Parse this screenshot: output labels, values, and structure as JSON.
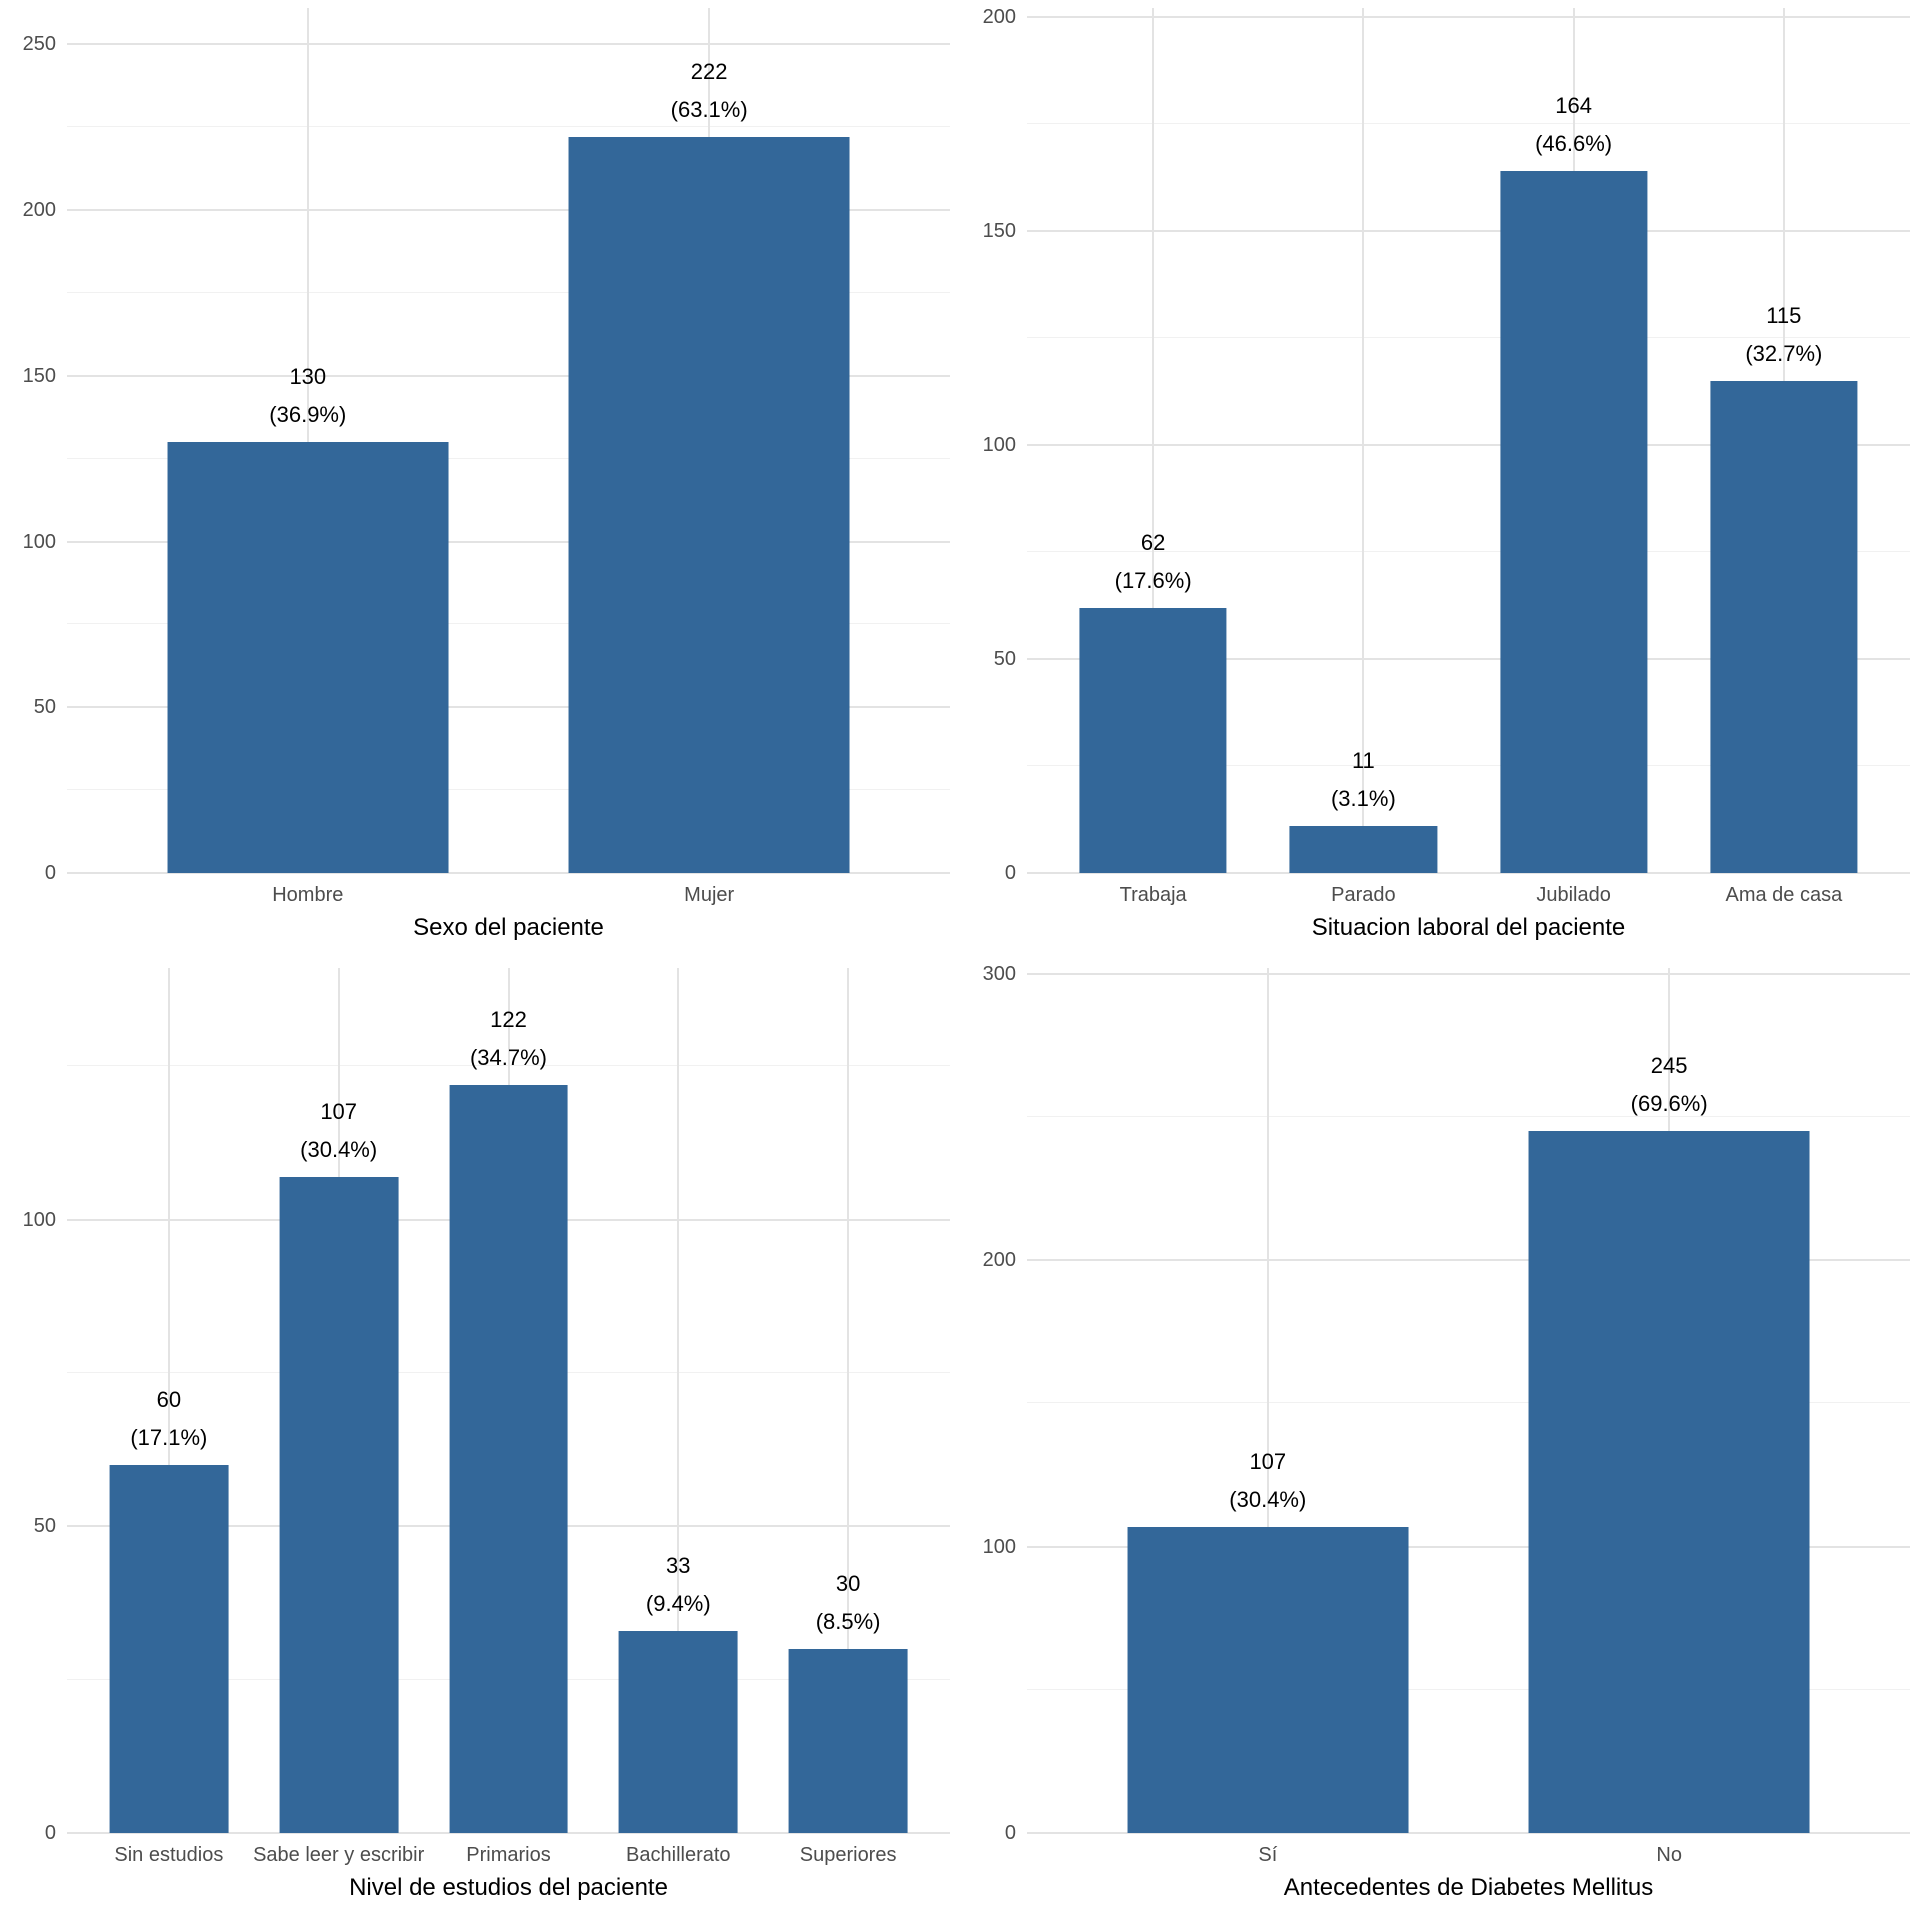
{
  "style": {
    "background": "#ffffff",
    "bar_color": "#336799",
    "grid_major_color": "#e3e3e3",
    "grid_minor_color": "#f1f1f1",
    "tick_label_color": "#4d4d4d",
    "text_color": "#000000"
  },
  "chart_data": {
    "type": "bar",
    "layout": "2x2-grid",
    "grid": true,
    "legend": false,
    "charts": [
      {
        "id": "sexo-del-paciente",
        "x_axis_title": "Sexo del paciente",
        "categories": [
          "Hombre",
          "Mujer"
        ],
        "bars": [
          {
            "category": "Hombre",
            "value": 130,
            "count_label": "130",
            "pct_label": "(36.9%)"
          },
          {
            "category": "Mujer",
            "value": 222,
            "count_label": "222",
            "pct_label": "(63.1%)"
          }
        ],
        "y_major_ticks": [
          0,
          50,
          100,
          150,
          200,
          250
        ],
        "y_minor_ticks": [
          25,
          75,
          125,
          175,
          225
        ],
        "ylim": [
          0,
          261
        ]
      },
      {
        "id": "situacion-laboral",
        "x_axis_title": "Situacion laboral del paciente",
        "categories": [
          "Trabaja",
          "Parado",
          "Jubilado",
          "Ama de casa"
        ],
        "bars": [
          {
            "category": "Trabaja",
            "value": 62,
            "count_label": "62",
            "pct_label": "(17.6%)"
          },
          {
            "category": "Parado",
            "value": 11,
            "count_label": "11",
            "pct_label": "(3.1%)"
          },
          {
            "category": "Jubilado",
            "value": 164,
            "count_label": "164",
            "pct_label": "(46.6%)"
          },
          {
            "category": "Ama de casa",
            "value": 115,
            "count_label": "115",
            "pct_label": "(32.7%)"
          }
        ],
        "y_major_ticks": [
          0,
          50,
          100,
          150,
          200
        ],
        "y_minor_ticks": [
          25,
          75,
          125,
          175
        ],
        "ylim": [
          0,
          202
        ]
      },
      {
        "id": "nivel-de-estudios",
        "x_axis_title": "Nivel de estudios del paciente",
        "categories": [
          "Sin estudios",
          "Sabe leer y escribir",
          "Primarios",
          "Bachillerato",
          "Superiores"
        ],
        "bars": [
          {
            "category": "Sin estudios",
            "value": 60,
            "count_label": "60",
            "pct_label": "(17.1%)"
          },
          {
            "category": "Sabe leer y escribir",
            "value": 107,
            "count_label": "107",
            "pct_label": "(30.4%)"
          },
          {
            "category": "Primarios",
            "value": 122,
            "count_label": "122",
            "pct_label": "(34.7%)"
          },
          {
            "category": "Bachillerato",
            "value": 33,
            "count_label": "33",
            "pct_label": "(9.4%)"
          },
          {
            "category": "Superiores",
            "value": 30,
            "count_label": "30",
            "pct_label": "(8.5%)"
          }
        ],
        "y_major_ticks": [
          0,
          50,
          100
        ],
        "y_minor_ticks": [
          25,
          75,
          125
        ],
        "ylim": [
          0,
          141
        ]
      },
      {
        "id": "antecedentes-diabetes",
        "x_axis_title": "Antecedentes de Diabetes Mellitus",
        "categories": [
          "Sí",
          "No"
        ],
        "bars": [
          {
            "category": "Sí",
            "value": 107,
            "count_label": "107",
            "pct_label": "(30.4%)"
          },
          {
            "category": "No",
            "value": 245,
            "count_label": "245",
            "pct_label": "(69.6%)"
          }
        ],
        "y_major_ticks": [
          0,
          100,
          200,
          300
        ],
        "y_minor_ticks": [
          50,
          150,
          250
        ],
        "ylim": [
          0,
          302
        ]
      }
    ]
  }
}
